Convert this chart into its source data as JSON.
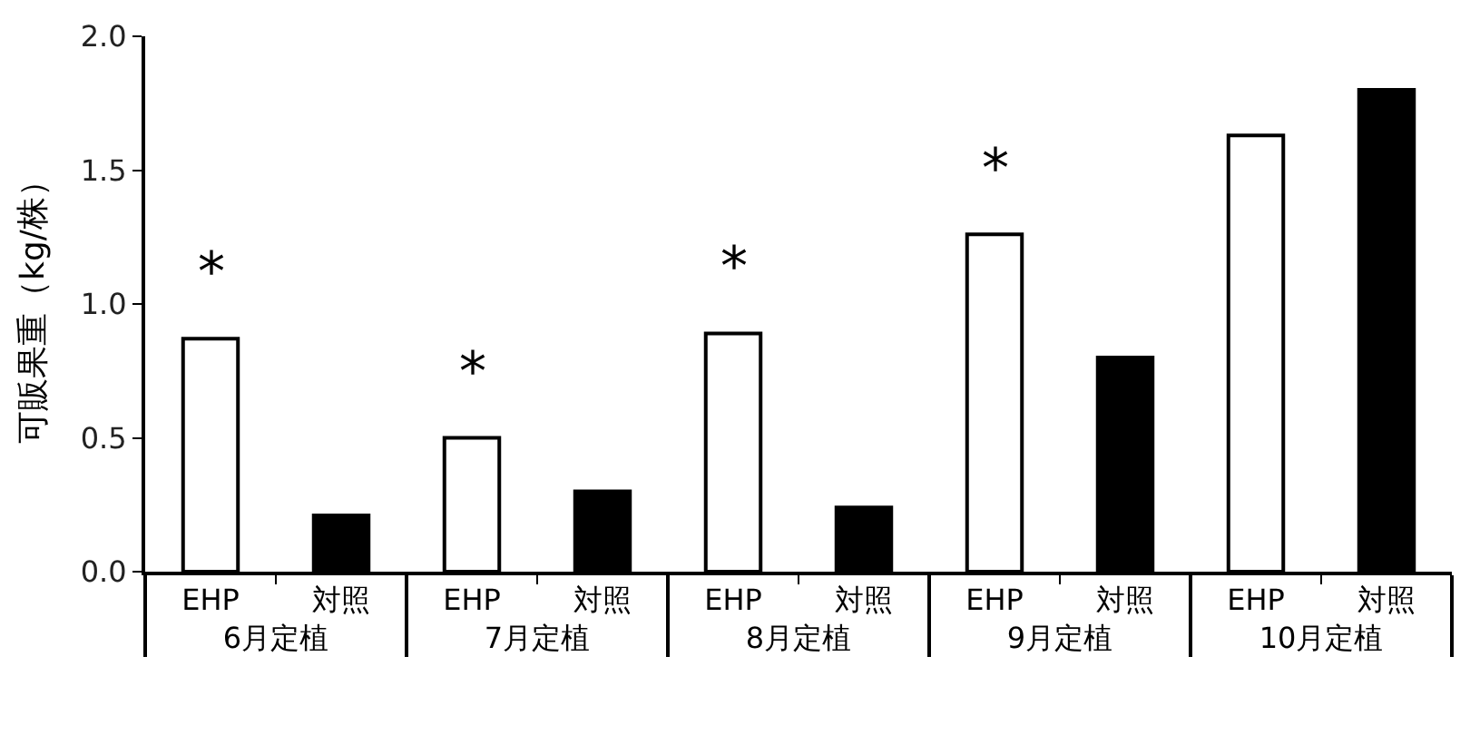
{
  "chart_data": {
    "type": "bar",
    "ylabel": "可販果重（kg/株）",
    "categories": [
      "6月定植",
      "7月定植",
      "8月定植",
      "9月定植",
      "10月定植"
    ],
    "series": [
      {
        "name": "EHP",
        "color": "#ffffff",
        "values": [
          0.87,
          0.5,
          0.89,
          1.26,
          1.63
        ]
      },
      {
        "name": "対照",
        "color": "#000000",
        "values": [
          0.21,
          0.3,
          0.24,
          0.8,
          1.8
        ]
      }
    ],
    "ylim": [
      0,
      2.0
    ],
    "yticks": [
      {
        "value": 0,
        "label": "0.0"
      },
      0.5,
      {
        "value": 1,
        "label": "1.0"
      },
      1.5,
      {
        "value": 2,
        "label": "2.0"
      }
    ],
    "annotations": [
      "*",
      "*",
      "*",
      "*"
    ],
    "legend": false
  }
}
